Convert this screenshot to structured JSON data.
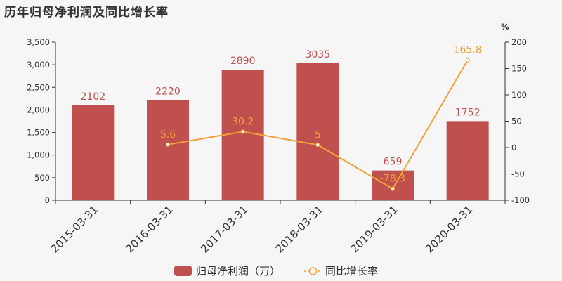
{
  "title": "历年归母净利润及同比增长率",
  "chart_data": {
    "type": "bar",
    "categories": [
      "2015-03-31",
      "2016-03-31",
      "2017-03-31",
      "2018-03-31",
      "2019-03-31",
      "2020-03-31"
    ],
    "series": [
      {
        "name": "归母净利润（万）",
        "type": "bar",
        "axis": "left",
        "color": "#c0504d",
        "values": [
          2102,
          2220,
          2890,
          3035,
          659,
          1752
        ],
        "labels": [
          "2102",
          "2220",
          "2890",
          "3035",
          "659",
          "1752"
        ]
      },
      {
        "name": "同比增长率",
        "type": "line",
        "axis": "right",
        "color": "#f2a03a",
        "values": [
          null,
          5.6,
          30.2,
          5,
          -78.3,
          165.8
        ],
        "labels": [
          "",
          "5.6",
          "30.2",
          "5",
          "-78.3",
          "165.8"
        ]
      }
    ],
    "y_left": {
      "range": [
        0,
        3500
      ],
      "ticks": [
        0,
        500,
        1000,
        1500,
        2000,
        2500,
        3000,
        3500
      ],
      "tick_labels": [
        "0",
        "500",
        "1,000",
        "1,500",
        "2,000",
        "2,500",
        "3,000",
        "3,500"
      ]
    },
    "y_right": {
      "label": "%",
      "range": [
        -100,
        200
      ],
      "ticks": [
        -100,
        -50,
        0,
        50,
        100,
        150,
        200
      ],
      "tick_labels": [
        "-100",
        "-50",
        "0",
        "50",
        "100",
        "150",
        "200"
      ]
    },
    "grid": false,
    "legend_position": "bottom-center"
  }
}
